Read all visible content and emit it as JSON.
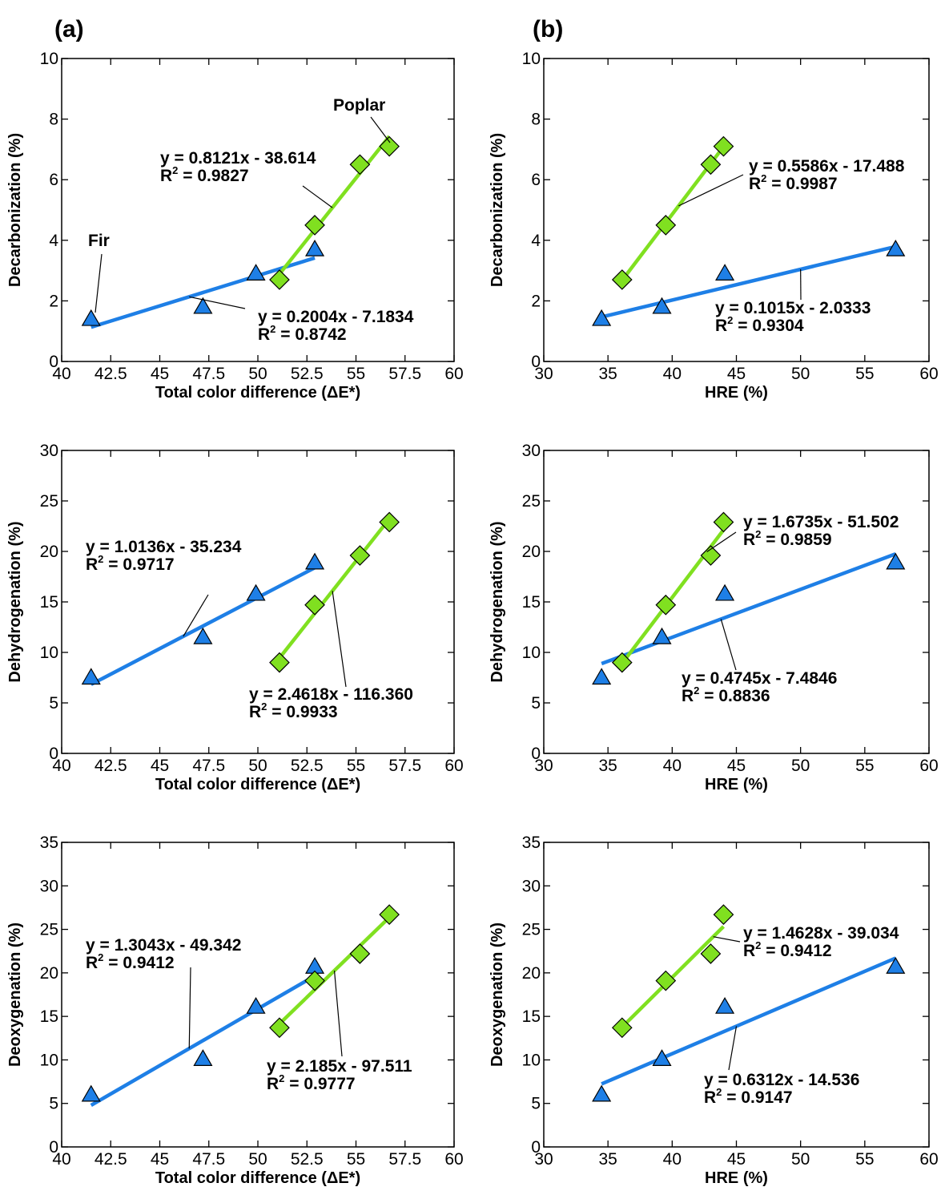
{
  "panel_labels": [
    "(a)",
    "(b)"
  ],
  "chart_data": [
    {
      "type": "scatter",
      "panel": "(a)",
      "xlabel": "Total color difference (ΔE*)",
      "ylabel": "Decarbonization (%)",
      "xlim": [
        40,
        60
      ],
      "ylim": [
        0,
        10
      ],
      "xticks": [
        "40",
        "42.5",
        "45",
        "47.5",
        "50",
        "52.5",
        "55",
        "57.5",
        "60"
      ],
      "yticks": [
        "0",
        "2",
        "4",
        "6",
        "8",
        "10"
      ],
      "series": [
        {
          "name": "Fir",
          "marker": "triangle",
          "color": "#1e7fe6",
          "x": [
            41.5,
            47.2,
            49.9,
            52.9
          ],
          "y": [
            1.4,
            1.8,
            2.9,
            3.7
          ]
        },
        {
          "name": "Poplar",
          "marker": "diamond",
          "color": "#80e020",
          "x": [
            51.1,
            52.9,
            55.2,
            56.7
          ],
          "y": [
            2.7,
            4.5,
            6.5,
            7.1
          ]
        }
      ],
      "fits": [
        {
          "series": "Fir",
          "x": [
            41.5,
            52.9
          ],
          "slope": 0.2004,
          "intercept": -7.1834,
          "equation": "y = 0.2004x - 7.1834",
          "r2": "0.8742"
        },
        {
          "series": "Poplar",
          "x": [
            51.1,
            56.7
          ],
          "slope": 0.8121,
          "intercept": -38.614,
          "equation": "y = 0.8121x - 38.614",
          "r2": "0.9827"
        }
      ],
      "annotations": [
        "Fir",
        "Poplar"
      ]
    },
    {
      "type": "scatter",
      "panel": "(b)",
      "xlabel": "HRE (%)",
      "ylabel": "Decarbonization (%)",
      "xlim": [
        30,
        60
      ],
      "ylim": [
        0,
        10
      ],
      "xticks": [
        "30",
        "35",
        "40",
        "45",
        "50",
        "55",
        "60"
      ],
      "yticks": [
        "0",
        "2",
        "4",
        "6",
        "8",
        "10"
      ],
      "series": [
        {
          "name": "Fir",
          "marker": "triangle",
          "color": "#1e7fe6",
          "x": [
            34.5,
            39.2,
            44.1,
            57.4
          ],
          "y": [
            1.4,
            1.8,
            2.9,
            3.7
          ]
        },
        {
          "name": "Poplar",
          "marker": "diamond",
          "color": "#80e020",
          "x": [
            36.1,
            39.5,
            43.0,
            44.0
          ],
          "y": [
            2.7,
            4.5,
            6.5,
            7.1
          ]
        }
      ],
      "fits": [
        {
          "series": "Fir",
          "x": [
            34.5,
            57.4
          ],
          "slope": 0.1015,
          "intercept": -2.0333,
          "equation": "y = 0.1015x - 2.0333",
          "r2": "0.9304"
        },
        {
          "series": "Poplar",
          "x": [
            36.1,
            44.0
          ],
          "slope": 0.5586,
          "intercept": -17.488,
          "equation": "y = 0.5586x - 17.488",
          "r2": "0.9987"
        }
      ],
      "annotations": []
    },
    {
      "type": "scatter",
      "panel": "(a)",
      "xlabel": "Total color difference (ΔE*)",
      "ylabel": "Dehydrogenation (%)",
      "xlim": [
        40,
        60
      ],
      "ylim": [
        0,
        30
      ],
      "xticks": [
        "40",
        "42.5",
        "45",
        "47.5",
        "50",
        "52.5",
        "55",
        "57.5",
        "60"
      ],
      "yticks": [
        "0",
        "5",
        "10",
        "15",
        "20",
        "25",
        "30"
      ],
      "series": [
        {
          "name": "Fir",
          "marker": "triangle",
          "color": "#1e7fe6",
          "x": [
            41.5,
            47.2,
            49.9,
            52.9
          ],
          "y": [
            7.5,
            11.5,
            15.8,
            18.9
          ]
        },
        {
          "name": "Poplar",
          "marker": "diamond",
          "color": "#80e020",
          "x": [
            51.1,
            52.9,
            55.2,
            56.7
          ],
          "y": [
            9.0,
            14.7,
            19.6,
            22.9
          ]
        }
      ],
      "fits": [
        {
          "series": "Fir",
          "x": [
            41.5,
            52.9
          ],
          "slope": 1.0136,
          "intercept": -35.234,
          "equation": "y = 1.0136x - 35.234",
          "r2": "0.9717"
        },
        {
          "series": "Poplar",
          "x": [
            51.1,
            56.7
          ],
          "slope": 2.4618,
          "intercept": -116.36,
          "equation": "y = 2.4618x - 116.360",
          "r2": "0.9933"
        }
      ],
      "annotations": []
    },
    {
      "type": "scatter",
      "panel": "(b)",
      "xlabel": "HRE (%)",
      "ylabel": "Dehydrogenation (%)",
      "xlim": [
        30,
        60
      ],
      "ylim": [
        0,
        30
      ],
      "xticks": [
        "30",
        "35",
        "40",
        "45",
        "50",
        "55",
        "60"
      ],
      "yticks": [
        "0",
        "5",
        "10",
        "15",
        "20",
        "25",
        "30"
      ],
      "series": [
        {
          "name": "Fir",
          "marker": "triangle",
          "color": "#1e7fe6",
          "x": [
            34.5,
            39.2,
            44.1,
            57.4
          ],
          "y": [
            7.5,
            11.5,
            15.8,
            18.9
          ]
        },
        {
          "name": "Poplar",
          "marker": "diamond",
          "color": "#80e020",
          "x": [
            36.1,
            39.5,
            43.0,
            44.0
          ],
          "y": [
            9.0,
            14.7,
            19.6,
            22.9
          ]
        }
      ],
      "fits": [
        {
          "series": "Fir",
          "x": [
            34.5,
            57.4
          ],
          "slope": 0.4745,
          "intercept": -7.4846,
          "equation": "y = 0.4745x - 7.4846",
          "r2": "0.8836"
        },
        {
          "series": "Poplar",
          "x": [
            36.1,
            44.0
          ],
          "slope": 1.6735,
          "intercept": -51.502,
          "equation": "y = 1.6735x - 51.502",
          "r2": "0.9859"
        }
      ],
      "annotations": []
    },
    {
      "type": "scatter",
      "panel": "(a)",
      "xlabel": "Total color difference (ΔE*)",
      "ylabel": "Deoxygenation (%)",
      "xlim": [
        40,
        60
      ],
      "ylim": [
        0,
        35
      ],
      "xticks": [
        "40",
        "42.5",
        "45",
        "47.5",
        "50",
        "52.5",
        "55",
        "57.5",
        "60"
      ],
      "yticks": [
        "0",
        "5",
        "10",
        "15",
        "20",
        "25",
        "30",
        "35"
      ],
      "series": [
        {
          "name": "Fir",
          "marker": "triangle",
          "color": "#1e7fe6",
          "x": [
            41.5,
            47.2,
            49.9,
            52.9
          ],
          "y": [
            6.0,
            10.1,
            16.1,
            20.7
          ]
        },
        {
          "name": "Poplar",
          "marker": "diamond",
          "color": "#80e020",
          "x": [
            51.1,
            52.9,
            55.2,
            56.7
          ],
          "y": [
            13.7,
            19.1,
            22.2,
            26.7
          ]
        }
      ],
      "fits": [
        {
          "series": "Fir",
          "x": [
            41.5,
            52.9
          ],
          "slope": 1.3043,
          "intercept": -49.342,
          "equation": "y = 1.3043x - 49.342",
          "r2": "0.9412"
        },
        {
          "series": "Poplar",
          "x": [
            51.1,
            56.7
          ],
          "slope": 2.185,
          "intercept": -97.511,
          "equation": "y = 2.185x - 97.511",
          "r2": "0.9777"
        }
      ],
      "annotations": []
    },
    {
      "type": "scatter",
      "panel": "(b)",
      "xlabel": "HRE (%)",
      "ylabel": "Deoxygenation (%)",
      "xlim": [
        30,
        60
      ],
      "ylim": [
        0,
        35
      ],
      "xticks": [
        "30",
        "35",
        "40",
        "45",
        "50",
        "55",
        "60"
      ],
      "yticks": [
        "0",
        "5",
        "10",
        "15",
        "20",
        "25",
        "30",
        "35"
      ],
      "series": [
        {
          "name": "Fir",
          "marker": "triangle",
          "color": "#1e7fe6",
          "x": [
            34.5,
            39.2,
            44.1,
            57.4
          ],
          "y": [
            6.0,
            10.1,
            16.1,
            20.7
          ]
        },
        {
          "name": "Poplar",
          "marker": "diamond",
          "color": "#80e020",
          "x": [
            36.1,
            39.5,
            43.0,
            44.0
          ],
          "y": [
            13.7,
            19.1,
            22.2,
            26.7
          ]
        }
      ],
      "fits": [
        {
          "series": "Fir",
          "x": [
            34.5,
            57.4
          ],
          "slope": 0.6312,
          "intercept": -14.536,
          "equation": "y = 0.6312x - 14.536",
          "r2": "0.9147"
        },
        {
          "series": "Poplar",
          "x": [
            36.1,
            44.0
          ],
          "slope": 1.4628,
          "intercept": -39.034,
          "equation": "y = 1.4628x - 39.034",
          "r2": "0.9412"
        }
      ],
      "annotations": []
    }
  ]
}
